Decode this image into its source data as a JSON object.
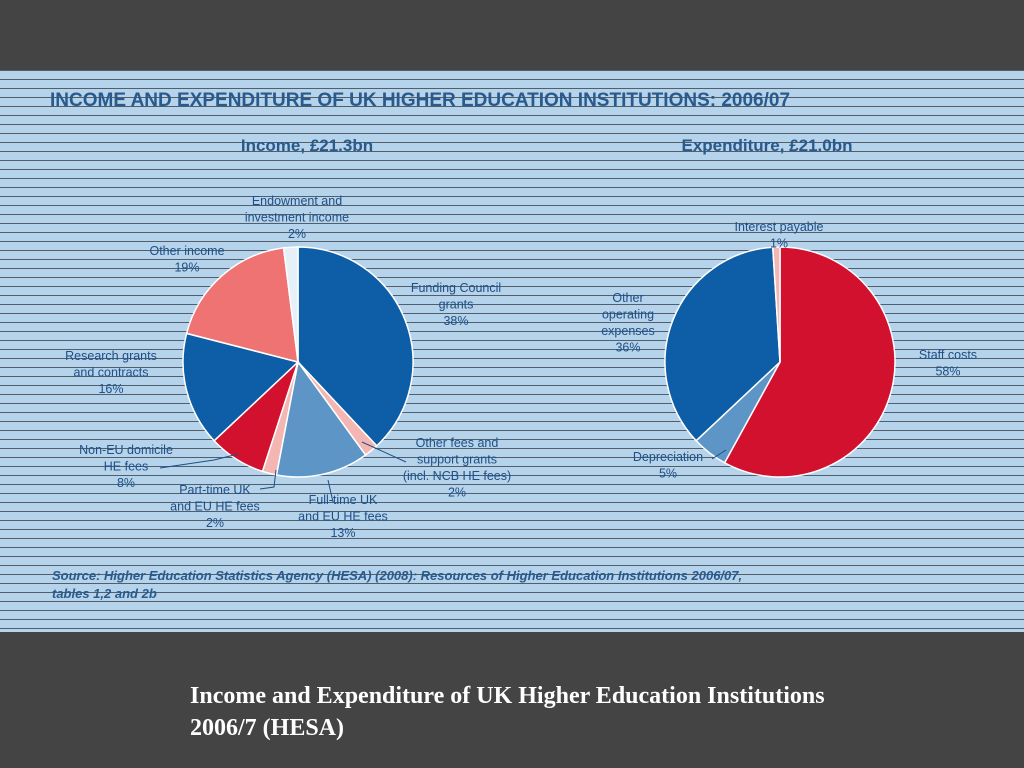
{
  "main_title": "INCOME AND EXPENDITURE OF UK HIGHER EDUCATION INSTITUTIONS: 2006/07",
  "source": "Source: Higher Education Statistics Agency (HESA) (2008): Resources of Higher Education Institutions 2006/07, tables 1,2 and 2b",
  "caption": "Income and Expenditure of UK Higher Education Institutions  2006/7 (HESA)",
  "colors": {
    "title_blue": "#2a5a8c",
    "outline": "#ffffff"
  },
  "chart_data": [
    {
      "type": "pie",
      "title": "Income, £21.3bn",
      "slices": [
        {
          "label": "Funding Council grants",
          "value": 38,
          "color": "#0d5ea6"
        },
        {
          "label": "Other fees and support grants (incl. NCB HE fees)",
          "value": 2,
          "color": "#f4b6b2"
        },
        {
          "label": "Full-time UK and EU HE fees",
          "value": 13,
          "color": "#5c95c6"
        },
        {
          "label": "Part-time UK and EU HE fees",
          "value": 2,
          "color": "#f4b6b2"
        },
        {
          "label": "Non-EU domicile HE fees",
          "value": 8,
          "color": "#d2112f"
        },
        {
          "label": "Research grants and contracts",
          "value": 16,
          "color": "#0d5ea6"
        },
        {
          "label": "Other income",
          "value": 19,
          "color": "#ef7373"
        },
        {
          "label": "Endowment and investment income",
          "value": 2,
          "color": "#e6f0f8"
        }
      ],
      "labels": [
        {
          "lines": [
            "Funding Council",
            "grants",
            "38%"
          ]
        },
        {
          "lines": [
            "Other fees and",
            "support grants",
            "(incl. NCB HE fees)",
            "2%"
          ]
        },
        {
          "lines": [
            "Full-time UK",
            "and EU HE fees",
            "13%"
          ]
        },
        {
          "lines": [
            "Part-time UK",
            "and EU HE fees",
            "2%"
          ]
        },
        {
          "lines": [
            "Non-EU domicile",
            "HE fees",
            "8%"
          ]
        },
        {
          "lines": [
            "Research grants",
            "and contracts",
            "16%"
          ]
        },
        {
          "lines": [
            "Other income",
            "19%"
          ]
        },
        {
          "lines": [
            "Endowment and",
            "investment income",
            "2%"
          ]
        }
      ]
    },
    {
      "type": "pie",
      "title": "Expenditure, £21.0bn",
      "slices": [
        {
          "label": "Staff costs",
          "value": 58,
          "color": "#d2112f"
        },
        {
          "label": "Depreciation",
          "value": 5,
          "color": "#5c95c6"
        },
        {
          "label": "Other operating expenses",
          "value": 36,
          "color": "#0d5ea6"
        },
        {
          "label": "Interest payable",
          "value": 1,
          "color": "#f4b6b2"
        }
      ],
      "labels": [
        {
          "lines": [
            "Staff costs",
            "58%"
          ]
        },
        {
          "lines": [
            "Depreciation",
            "5%"
          ]
        },
        {
          "lines": [
            "Other",
            "operating",
            "expenses",
            "36%"
          ]
        },
        {
          "lines": [
            "Interest payable",
            "1%"
          ]
        }
      ]
    }
  ]
}
